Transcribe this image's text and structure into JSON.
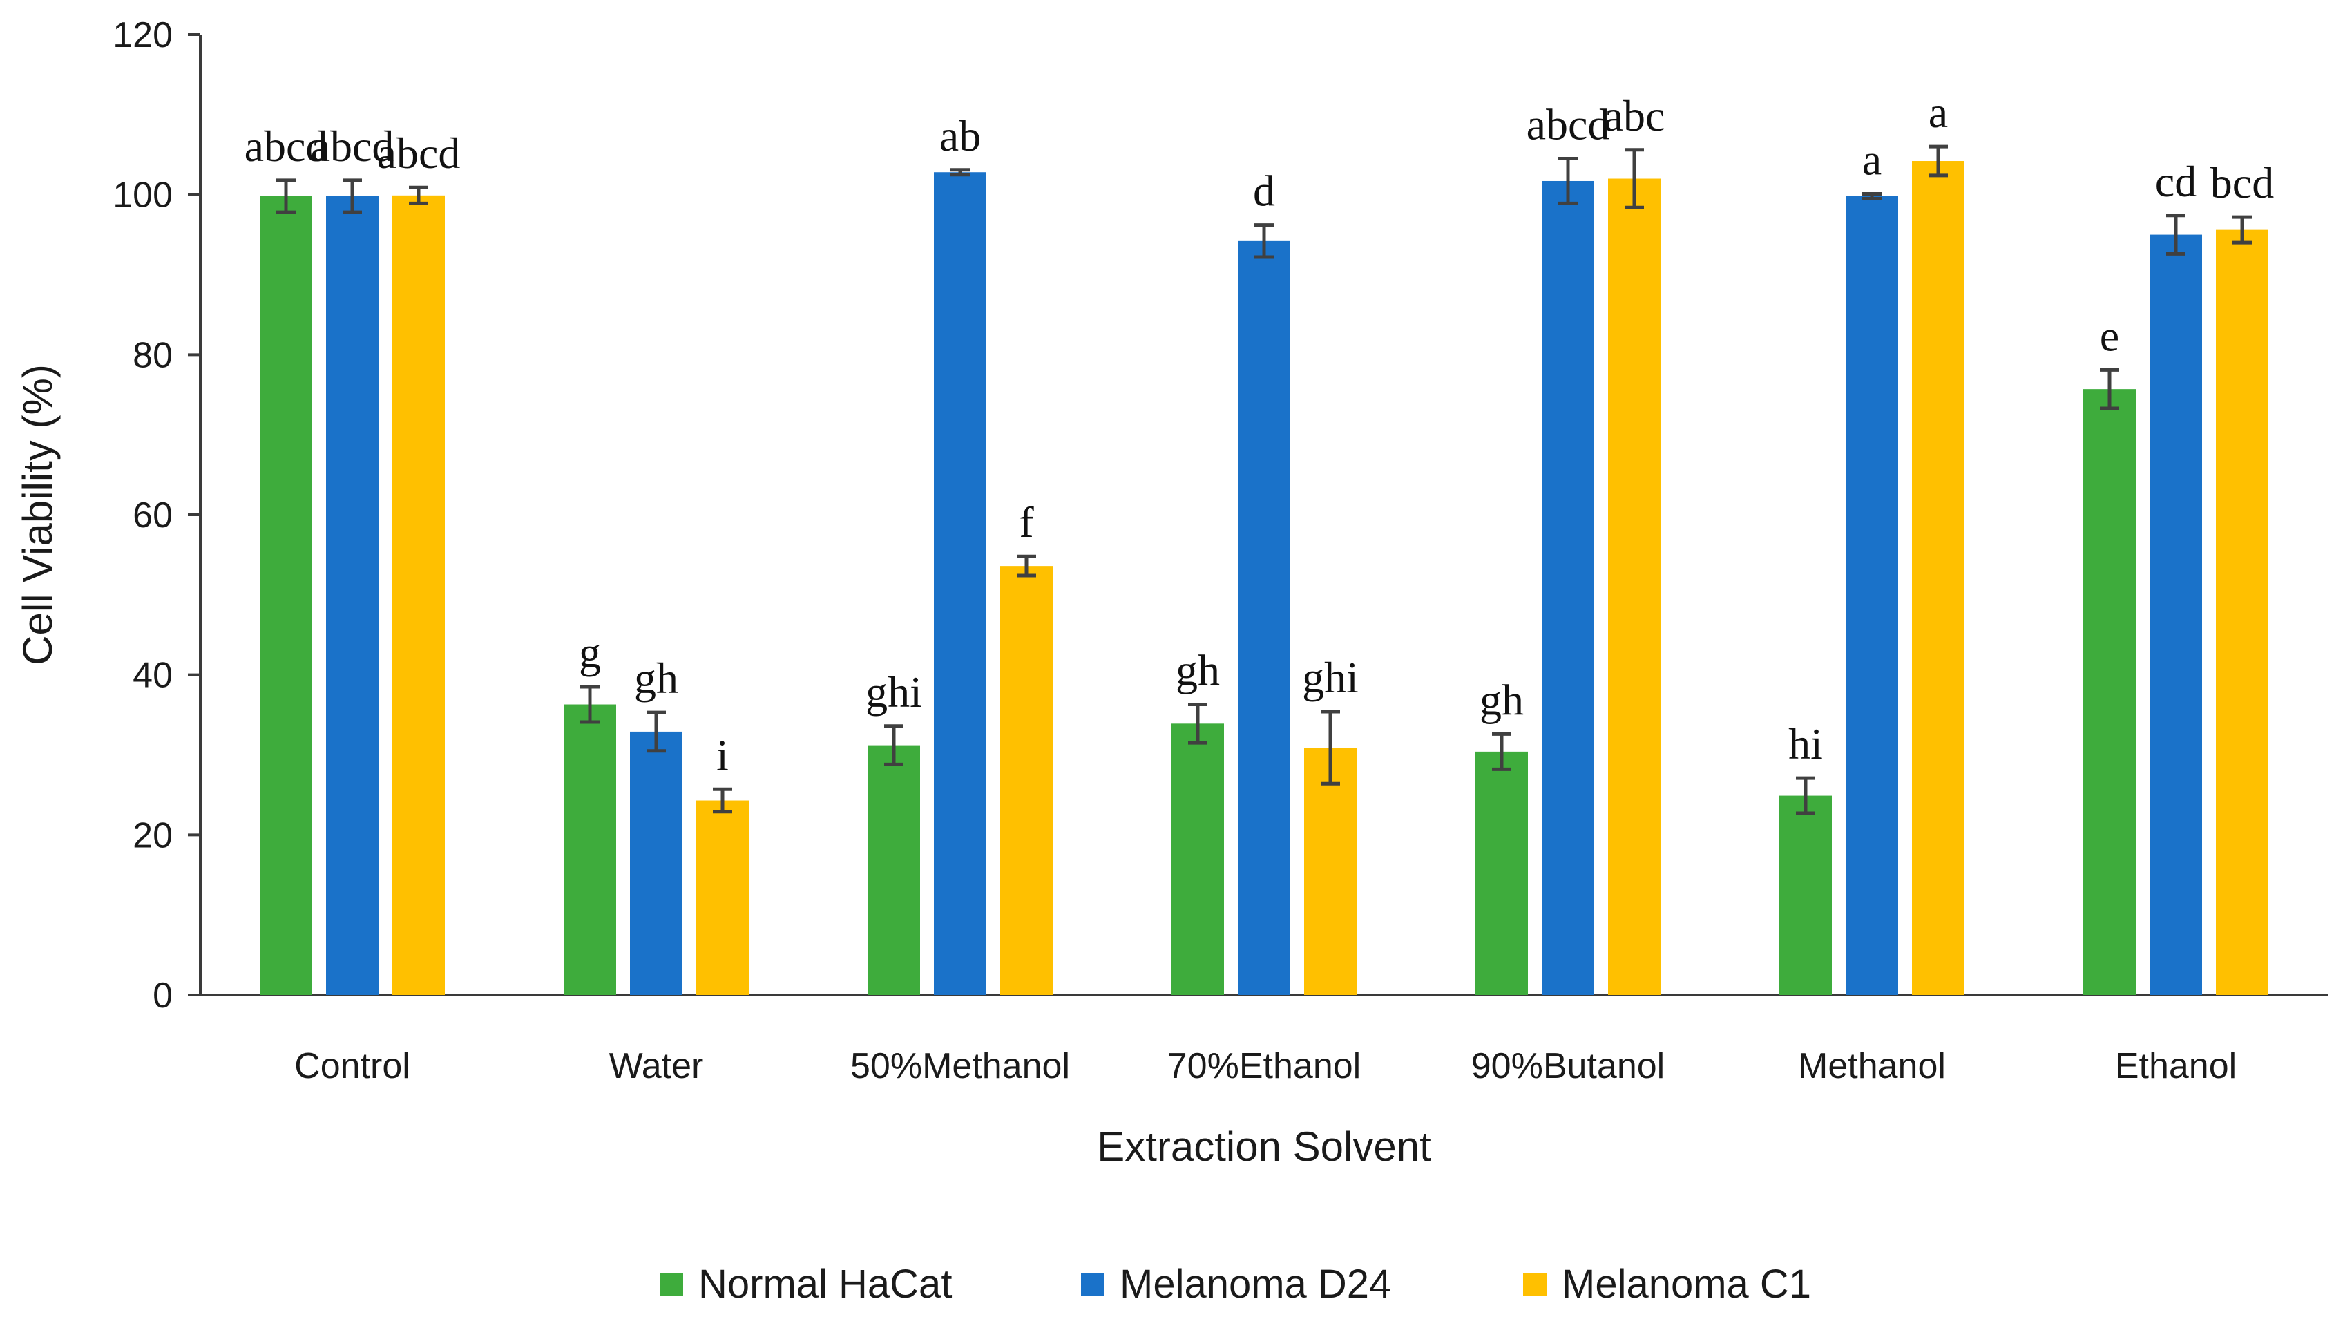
{
  "chart_data": {
    "type": "bar",
    "title": "",
    "xlabel": "Extraction Solvent",
    "ylabel": "Cell Viability (%)",
    "ylim": [
      0,
      120
    ],
    "yticks": [
      "0",
      "20",
      "40",
      "60",
      "80",
      "100",
      "120"
    ],
    "categories": [
      "Control",
      "Water",
      "50%Methanol",
      "70%Ethanol",
      "90%Butanol",
      "Methanol",
      "Ethanol"
    ],
    "legend_position": "bottom",
    "grid": false,
    "error_bars": true,
    "series": [
      {
        "name": "Normal HaCat",
        "color": "#3eac3c",
        "values": [
          99.8,
          36.3,
          31.2,
          33.9,
          30.4,
          24.9,
          75.7
        ],
        "errors": [
          2.0,
          2.2,
          2.4,
          2.4,
          2.2,
          2.2,
          2.4
        ],
        "labels": [
          "abcd",
          "g",
          "ghi",
          "gh",
          "gh",
          "hi",
          "e"
        ]
      },
      {
        "name": "Melanoma D24",
        "color": "#1a72c9",
        "values": [
          99.8,
          32.9,
          102.8,
          94.2,
          101.7,
          99.8,
          95.0
        ],
        "errors": [
          2.0,
          2.4,
          0.3,
          2.0,
          2.8,
          0.3,
          2.4
        ],
        "labels": [
          "abcd",
          "gh",
          "ab",
          "d",
          "abcd",
          "a",
          "cd"
        ]
      },
      {
        "name": "Melanoma C1",
        "color": "#ffc000",
        "values": [
          99.9,
          24.3,
          53.6,
          30.9,
          102.0,
          104.2,
          95.6
        ],
        "errors": [
          1.0,
          1.4,
          1.2,
          4.5,
          3.6,
          1.8,
          1.6
        ],
        "labels": [
          "abcd",
          "i",
          "f",
          "ghi",
          "abc",
          "a",
          "bcd"
        ]
      }
    ]
  }
}
